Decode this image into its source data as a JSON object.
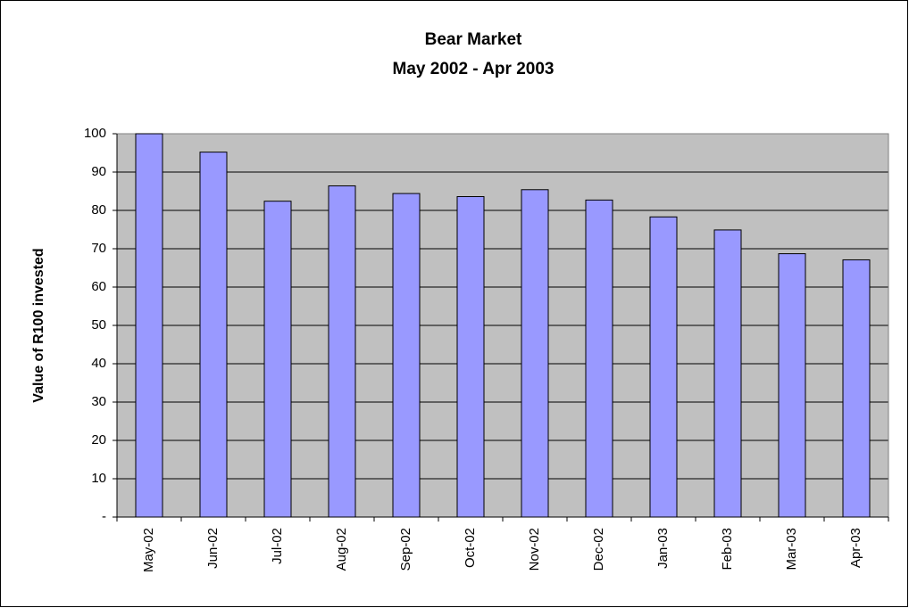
{
  "chart_data": {
    "type": "bar",
    "title": "Bear Market",
    "subtitle": "May 2002 - Apr 2003",
    "y_label": "Value of R100 invested",
    "categories": [
      "May-02",
      "Jun-02",
      "Jul-02",
      "Aug-02",
      "Sep-02",
      "Oct-02",
      "Nov-02",
      "Dec-02",
      "Jan-03",
      "Feb-03",
      "Mar-03",
      "Apr-03"
    ],
    "values": [
      100,
      95.2,
      82.4,
      86.4,
      84.4,
      83.6,
      85.4,
      82.7,
      78.3,
      74.9,
      68.7,
      67.1
    ],
    "color": "#9999ff",
    "ylim": [
      0,
      100
    ],
    "yticks": [
      {
        "value": 0,
        "label": "-"
      },
      10,
      20,
      30,
      40,
      50,
      60,
      70,
      80,
      90,
      100
    ],
    "grid": true
  }
}
